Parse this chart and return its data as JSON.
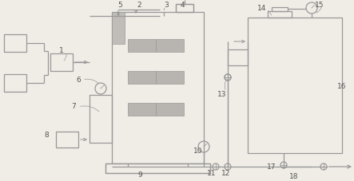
{
  "bg_color": "#f0ece6",
  "lc": "#999999",
  "lc2": "#aaaaaa",
  "fc_gray": "#c0bdb8",
  "fc_plate": "#b8b5b0",
  "label_color": "#555555",
  "label_fs": 6.5
}
